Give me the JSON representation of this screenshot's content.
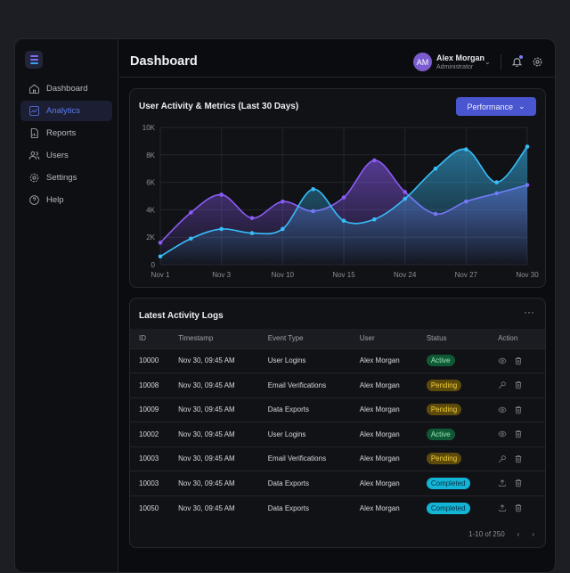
{
  "sidebar": {
    "items": [
      {
        "label": "Dashboard",
        "icon": "home-icon"
      },
      {
        "label": "Analytics",
        "icon": "chart-line-icon",
        "active": true
      },
      {
        "label": "Reports",
        "icon": "report-icon"
      },
      {
        "label": "Users",
        "icon": "users-icon"
      },
      {
        "label": "Settings",
        "icon": "gear-icon"
      },
      {
        "label": "Help",
        "icon": "help-icon"
      }
    ]
  },
  "header": {
    "title": "Dashboard",
    "user": {
      "initials": "AM",
      "name": "Alex Morgan",
      "role": "Administrator"
    }
  },
  "chart_card": {
    "title": "User Activity & Metrics (Last 30 Days)",
    "dropdown": "Performance"
  },
  "chart_data": {
    "type": "area",
    "title": "User Activity & Metrics (Last 30 Days)",
    "x_tick_labels": [
      "Nov 1",
      "",
      "Nov 3",
      "",
      "Nov 10",
      "",
      "Nov 15",
      "",
      "Nov 24",
      "",
      "Nov 27",
      "",
      "Nov 30"
    ],
    "y_ticks": [
      "0",
      "2K",
      "4K",
      "6K",
      "8K",
      "10K"
    ],
    "ylim": [
      0,
      10000
    ],
    "grid": true,
    "series": [
      {
        "color": "#8b5cf6",
        "values": [
          1600,
          3800,
          5100,
          3400,
          4600,
          3900,
          4900,
          7600,
          5300,
          3700,
          4600,
          5200,
          5800
        ]
      },
      {
        "color": "#38bdf8",
        "values": [
          600,
          1900,
          2600,
          2300,
          2600,
          5500,
          3200,
          3300,
          4800,
          7000,
          8400,
          6000,
          8600
        ]
      }
    ]
  },
  "table": {
    "title": "Latest Activity Logs",
    "columns": [
      "ID",
      "Timestamp",
      "Event Type",
      "User",
      "Status",
      "Action"
    ],
    "rows": [
      {
        "id": "10000",
        "ts": "Nov 30, 09:45 AM",
        "event": "User Logins",
        "user": "Alex Morgan",
        "status": "Active",
        "action": "eye-icon"
      },
      {
        "id": "10008",
        "ts": "Nov 30, 09:45 AM",
        "event": "Email Verifications",
        "user": "Alex Morgan",
        "status": "Pending",
        "action": "key-icon"
      },
      {
        "id": "10009",
        "ts": "Nov 30, 09:45 AM",
        "event": "Data Exports",
        "user": "Alex Morgan",
        "status": "Pending",
        "action": "eye-icon"
      },
      {
        "id": "10002",
        "ts": "Nov 30, 09:45 AM",
        "event": "User Logins",
        "user": "Alex Morgan",
        "status": "Active",
        "action": "eye-icon"
      },
      {
        "id": "10003",
        "ts": "Nov 30, 09:45 AM",
        "event": "Email Verifications",
        "user": "Alex Morgan",
        "status": "Pending",
        "action": "key-icon"
      },
      {
        "id": "10003",
        "ts": "Nov 30, 09:45 AM",
        "event": "Data Exports",
        "user": "Alex Morgan",
        "status": "Completed",
        "action": "upload-icon"
      },
      {
        "id": "10050",
        "ts": "Nov 30, 09:45 AM",
        "event": "Data Exports",
        "user": "Alex Morgan",
        "status": "Completed",
        "action": "upload-icon"
      }
    ],
    "pagination": "1-10 of 250"
  }
}
